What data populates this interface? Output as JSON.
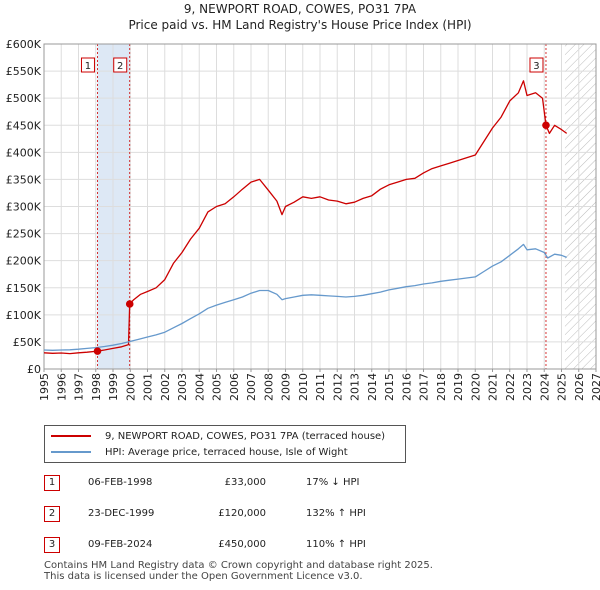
{
  "header": {
    "title_line1": "9, NEWPORT ROAD, COWES, PO31 7PA",
    "title_line2": "Price paid vs. HM Land Registry's House Price Index (HPI)"
  },
  "colors": {
    "property_line": "#cc0000",
    "hpi_line": "#6699cc",
    "highlight_band": "#dde8f5",
    "marker_border": "#cc0000",
    "grid": "#dddddd"
  },
  "chart_data": {
    "type": "line",
    "xlim": [
      1995,
      2027
    ],
    "ylim": [
      0,
      600000
    ],
    "x_ticks": [
      1995,
      1996,
      1997,
      1998,
      1999,
      2000,
      2001,
      2002,
      2003,
      2004,
      2005,
      2006,
      2007,
      2008,
      2009,
      2010,
      2011,
      2012,
      2013,
      2014,
      2015,
      2016,
      2017,
      2018,
      2019,
      2020,
      2021,
      2022,
      2023,
      2024,
      2025,
      2026,
      2027
    ],
    "y_ticks": [
      {
        "value": 0,
        "label": "£0"
      },
      {
        "value": 50000,
        "label": "£50K"
      },
      {
        "value": 100000,
        "label": "£100K"
      },
      {
        "value": 150000,
        "label": "£150K"
      },
      {
        "value": 200000,
        "label": "£200K"
      },
      {
        "value": 250000,
        "label": "£250K"
      },
      {
        "value": 300000,
        "label": "£300K"
      },
      {
        "value": 350000,
        "label": "£350K"
      },
      {
        "value": 400000,
        "label": "£400K"
      },
      {
        "value": 450000,
        "label": "£450K"
      },
      {
        "value": 500000,
        "label": "£500K"
      },
      {
        "value": 550000,
        "label": "£550K"
      },
      {
        "value": 600000,
        "label": "£600K"
      }
    ],
    "highlight_band": [
      1998.1,
      1999.97
    ],
    "future_hatch_from": 2025.2,
    "series": [
      {
        "name": "9, NEWPORT ROAD, COWES, PO31 7PA (terraced house)",
        "color": "#cc0000",
        "points": [
          [
            1995,
            30000
          ],
          [
            1995.5,
            29000
          ],
          [
            1996,
            29500
          ],
          [
            1996.5,
            28500
          ],
          [
            1997,
            30000
          ],
          [
            1997.5,
            31000
          ],
          [
            1998.1,
            33000
          ],
          [
            1998.5,
            35000
          ],
          [
            1999,
            38000
          ],
          [
            1999.5,
            41000
          ],
          [
            1999.9,
            45000
          ],
          [
            1999.97,
            120000
          ],
          [
            2000.2,
            128000
          ],
          [
            2000.6,
            138000
          ],
          [
            2001,
            143000
          ],
          [
            2001.5,
            150000
          ],
          [
            2002,
            165000
          ],
          [
            2002.5,
            195000
          ],
          [
            2003,
            215000
          ],
          [
            2003.5,
            240000
          ],
          [
            2004,
            260000
          ],
          [
            2004.5,
            290000
          ],
          [
            2005,
            300000
          ],
          [
            2005.5,
            305000
          ],
          [
            2006,
            318000
          ],
          [
            2006.5,
            332000
          ],
          [
            2007,
            345000
          ],
          [
            2007.5,
            350000
          ],
          [
            2008,
            330000
          ],
          [
            2008.5,
            310000
          ],
          [
            2008.8,
            285000
          ],
          [
            2009,
            300000
          ],
          [
            2009.5,
            308000
          ],
          [
            2010,
            318000
          ],
          [
            2010.5,
            315000
          ],
          [
            2011,
            318000
          ],
          [
            2011.5,
            312000
          ],
          [
            2012,
            310000
          ],
          [
            2012.5,
            305000
          ],
          [
            2013,
            308000
          ],
          [
            2013.5,
            315000
          ],
          [
            2014,
            320000
          ],
          [
            2014.5,
            332000
          ],
          [
            2015,
            340000
          ],
          [
            2015.5,
            345000
          ],
          [
            2016,
            350000
          ],
          [
            2016.5,
            352000
          ],
          [
            2017,
            362000
          ],
          [
            2017.5,
            370000
          ],
          [
            2018,
            375000
          ],
          [
            2018.5,
            380000
          ],
          [
            2019,
            385000
          ],
          [
            2019.5,
            390000
          ],
          [
            2020,
            395000
          ],
          [
            2020.5,
            420000
          ],
          [
            2021,
            445000
          ],
          [
            2021.5,
            465000
          ],
          [
            2022,
            495000
          ],
          [
            2022.5,
            510000
          ],
          [
            2022.8,
            532000
          ],
          [
            2023,
            505000
          ],
          [
            2023.5,
            510000
          ],
          [
            2023.9,
            500000
          ],
          [
            2024.1,
            450000
          ],
          [
            2024.3,
            435000
          ],
          [
            2024.6,
            450000
          ],
          [
            2025,
            442000
          ],
          [
            2025.3,
            435000
          ]
        ]
      },
      {
        "name": "HPI: Average price, terraced house, Isle of Wight",
        "color": "#6699cc",
        "points": [
          [
            1995,
            35000
          ],
          [
            1995.5,
            34500
          ],
          [
            1996,
            35000
          ],
          [
            1996.5,
            35500
          ],
          [
            1997,
            36500
          ],
          [
            1997.5,
            38000
          ],
          [
            1998,
            39500
          ],
          [
            1998.5,
            41500
          ],
          [
            1999,
            44000
          ],
          [
            1999.5,
            47000
          ],
          [
            2000,
            51000
          ],
          [
            2000.5,
            55000
          ],
          [
            2001,
            59000
          ],
          [
            2001.5,
            63000
          ],
          [
            2002,
            68000
          ],
          [
            2002.5,
            76000
          ],
          [
            2003,
            84000
          ],
          [
            2003.5,
            93000
          ],
          [
            2004,
            102000
          ],
          [
            2004.5,
            112000
          ],
          [
            2005,
            118000
          ],
          [
            2005.5,
            123000
          ],
          [
            2006,
            128000
          ],
          [
            2006.5,
            133000
          ],
          [
            2007,
            140000
          ],
          [
            2007.5,
            145000
          ],
          [
            2008,
            145000
          ],
          [
            2008.5,
            138000
          ],
          [
            2008.8,
            128000
          ],
          [
            2009,
            130000
          ],
          [
            2009.5,
            133000
          ],
          [
            2010,
            136000
          ],
          [
            2010.5,
            137000
          ],
          [
            2011,
            136000
          ],
          [
            2011.5,
            135000
          ],
          [
            2012,
            134000
          ],
          [
            2012.5,
            133000
          ],
          [
            2013,
            134000
          ],
          [
            2013.5,
            136000
          ],
          [
            2014,
            139000
          ],
          [
            2014.5,
            142000
          ],
          [
            2015,
            146000
          ],
          [
            2015.5,
            149000
          ],
          [
            2016,
            152000
          ],
          [
            2016.5,
            154000
          ],
          [
            2017,
            157000
          ],
          [
            2017.5,
            159000
          ],
          [
            2018,
            162000
          ],
          [
            2018.5,
            164000
          ],
          [
            2019,
            166000
          ],
          [
            2019.5,
            168000
          ],
          [
            2020,
            170000
          ],
          [
            2020.5,
            180000
          ],
          [
            2021,
            190000
          ],
          [
            2021.5,
            198000
          ],
          [
            2022,
            210000
          ],
          [
            2022.5,
            222000
          ],
          [
            2022.8,
            230000
          ],
          [
            2023,
            220000
          ],
          [
            2023.5,
            222000
          ],
          [
            2024,
            215000
          ],
          [
            2024.2,
            205000
          ],
          [
            2024.6,
            212000
          ],
          [
            2025,
            210000
          ],
          [
            2025.3,
            206000
          ]
        ]
      }
    ],
    "markers": [
      {
        "label": "1",
        "x": 1998.1,
        "y": 33000
      },
      {
        "label": "2",
        "x": 1999.97,
        "y": 120000
      },
      {
        "label": "3",
        "x": 2024.1,
        "y": 450000
      }
    ]
  },
  "legend": {
    "items": [
      {
        "label": "9, NEWPORT ROAD, COWES, PO31 7PA (terraced house)",
        "color": "#cc0000"
      },
      {
        "label": "HPI: Average price, terraced house, Isle of Wight",
        "color": "#6699cc"
      }
    ]
  },
  "transactions": [
    {
      "num": "1",
      "date": "06-FEB-1998",
      "price": "£33,000",
      "hpi": "17% ↓ HPI"
    },
    {
      "num": "2",
      "date": "23-DEC-1999",
      "price": "£120,000",
      "hpi": "132% ↑ HPI"
    },
    {
      "num": "3",
      "date": "09-FEB-2024",
      "price": "£450,000",
      "hpi": "110% ↑ HPI"
    }
  ],
  "footer": {
    "line1": "Contains HM Land Registry data © Crown copyright and database right 2025.",
    "line2": "This data is licensed under the Open Government Licence v3.0."
  }
}
